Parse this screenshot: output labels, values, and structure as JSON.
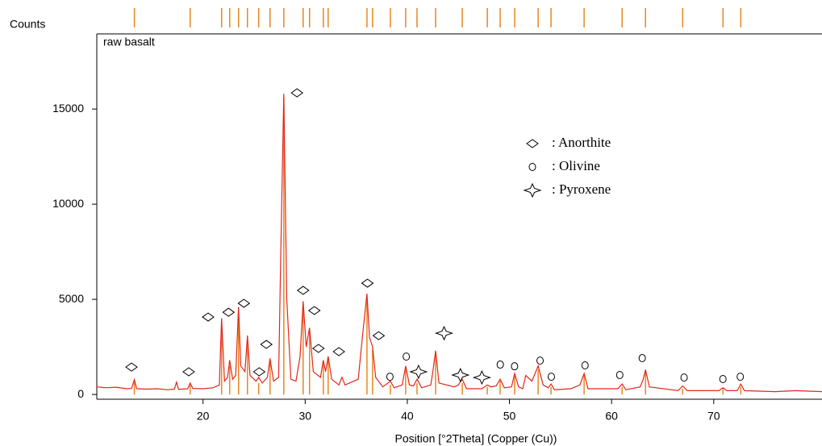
{
  "chart_data": {
    "type": "line",
    "ylabel": "Counts",
    "xlabel": "Position [°2Theta] (Copper (Cu))",
    "xlim": [
      9.6,
      80.6
    ],
    "ylim": [
      -250,
      18950
    ],
    "xticks": [
      20,
      30,
      40,
      50,
      60,
      70
    ],
    "yticks": [
      0,
      5000,
      10000,
      15000
    ],
    "series": [
      {
        "name": "raw basalt",
        "color": "#e3261b",
        "x": [
          9.6,
          10.5,
          11.5,
          12.5,
          13.0,
          13.28,
          13.5,
          14.5,
          15.5,
          16.5,
          17.2,
          17.4,
          17.6,
          18.5,
          18.74,
          19.0,
          20.0,
          21.0,
          21.6,
          21.82,
          22.1,
          22.4,
          22.61,
          22.9,
          23.2,
          23.48,
          23.7,
          24.1,
          24.35,
          24.6,
          25.2,
          25.45,
          25.8,
          26.3,
          26.56,
          26.9,
          27.4,
          27.6,
          27.91,
          28.2,
          28.6,
          29.1,
          29.5,
          29.8,
          30.1,
          30.43,
          30.8,
          31.5,
          31.78,
          32.0,
          32.25,
          32.6,
          33.3,
          33.6,
          33.9,
          35.2,
          35.6,
          36.05,
          36.3,
          36.6,
          36.9,
          37.6,
          38.34,
          38.7,
          39.5,
          39.84,
          40.2,
          40.6,
          40.95,
          41.4,
          42.3,
          42.5,
          42.77,
          43.1,
          44.6,
          45.0,
          45.38,
          45.8,
          47.3,
          47.83,
          48.2,
          48.7,
          49.09,
          49.5,
          50.2,
          50.51,
          50.9,
          51.3,
          51.6,
          52.2,
          52.81,
          53.3,
          53.8,
          54.07,
          54.4,
          56.0,
          56.9,
          57.31,
          57.7,
          60.6,
          61.03,
          61.4,
          62.8,
          63.1,
          63.32,
          63.7,
          66.5,
          66.96,
          67.4,
          70.5,
          70.91,
          71.3,
          72.3,
          72.65,
          73.0,
          76.0,
          78.0,
          80.6
        ],
        "values": [
          400,
          350,
          380,
          300,
          320,
          780,
          300,
          280,
          300,
          250,
          280,
          650,
          270,
          300,
          600,
          320,
          300,
          350,
          500,
          4000,
          700,
          900,
          1800,
          800,
          1000,
          4600,
          1500,
          1200,
          3100,
          1000,
          700,
          900,
          600,
          900,
          1900,
          700,
          900,
          7000,
          15800,
          5000,
          800,
          700,
          2000,
          4900,
          2500,
          3500,
          1200,
          900,
          1800,
          1200,
          2000,
          800,
          500,
          900,
          500,
          800,
          3000,
          5300,
          3000,
          2500,
          900,
          400,
          700,
          350,
          500,
          1500,
          500,
          450,
          800,
          350,
          500,
          1200,
          2300,
          600,
          400,
          500,
          800,
          300,
          300,
          500,
          400,
          450,
          800,
          350,
          400,
          1100,
          400,
          300,
          1000,
          700,
          1500,
          500,
          350,
          550,
          250,
          300,
          500,
          1100,
          300,
          300,
          550,
          250,
          400,
          800,
          1300,
          400,
          200,
          450,
          200,
          200,
          350,
          200,
          200,
          550,
          200,
          150,
          200,
          150
        ]
      }
    ],
    "reference_peaks": {
      "color": "#e8861f",
      "x": [
        13.28,
        18.74,
        21.82,
        22.61,
        23.48,
        24.35,
        25.45,
        26.56,
        27.91,
        29.8,
        30.43,
        31.78,
        32.25,
        36.05,
        36.6,
        38.34,
        39.84,
        40.95,
        42.77,
        45.38,
        47.83,
        49.09,
        50.51,
        52.81,
        54.07,
        57.31,
        61.03,
        63.32,
        66.96,
        70.91,
        72.65
      ],
      "values": [
        700,
        500,
        3800,
        1500,
        4300,
        3000,
        600,
        1700,
        15600,
        4700,
        3300,
        1700,
        1900,
        5100,
        2400,
        500,
        1400,
        600,
        2200,
        600,
        400,
        700,
        1000,
        1300,
        400,
        1000,
        400,
        1200,
        300,
        300,
        400
      ]
    },
    "markers": [
      {
        "name": ": Anorthite",
        "symbol": "diamond",
        "x": [
          13.0,
          18.6,
          20.5,
          22.5,
          24.0,
          26.2,
          25.5,
          29.2,
          29.8,
          30.9,
          31.3,
          33.3,
          36.1,
          37.2
        ],
        "values": [
          1440,
          1190,
          4070,
          4320,
          4790,
          2630,
          1190,
          15850,
          5470,
          4410,
          2420,
          2250,
          5850,
          3090
        ]
      },
      {
        "name": ": Olivine",
        "symbol": "circle",
        "x": [
          38.3,
          39.9,
          49.1,
          50.5,
          53.0,
          54.1,
          57.4,
          60.8,
          63.0,
          67.1,
          70.9,
          72.6
        ],
        "values": [
          930,
          1990,
          1570,
          1480,
          1780,
          930,
          1530,
          1020,
          1910,
          890,
          810,
          930
        ]
      },
      {
        "name": ": Pyroxene",
        "symbol": "star",
        "x": [
          41.1,
          43.6,
          45.2,
          47.3
        ],
        "values": [
          1190,
          3220,
          1020,
          890
        ]
      }
    ]
  }
}
